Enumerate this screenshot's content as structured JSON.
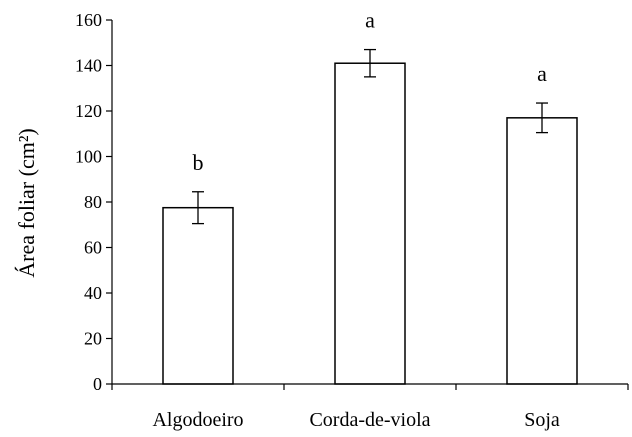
{
  "chart_data": {
    "type": "bar",
    "title": "",
    "xlabel": "",
    "ylabel": "Área foliar (cm²)",
    "ylim": [
      0,
      160
    ],
    "yticks": [
      0,
      20,
      40,
      60,
      80,
      100,
      120,
      140,
      160
    ],
    "grid": false,
    "categories": [
      "Algodoeiro",
      "Corda-de-viola",
      "Soja"
    ],
    "values": [
      77.5,
      141,
      117
    ],
    "error": [
      7,
      6,
      6.5
    ],
    "letters": [
      "b",
      "a",
      "a"
    ],
    "colors": {
      "bar_fill": "#ffffff",
      "bar_stroke": "#000000"
    }
  }
}
